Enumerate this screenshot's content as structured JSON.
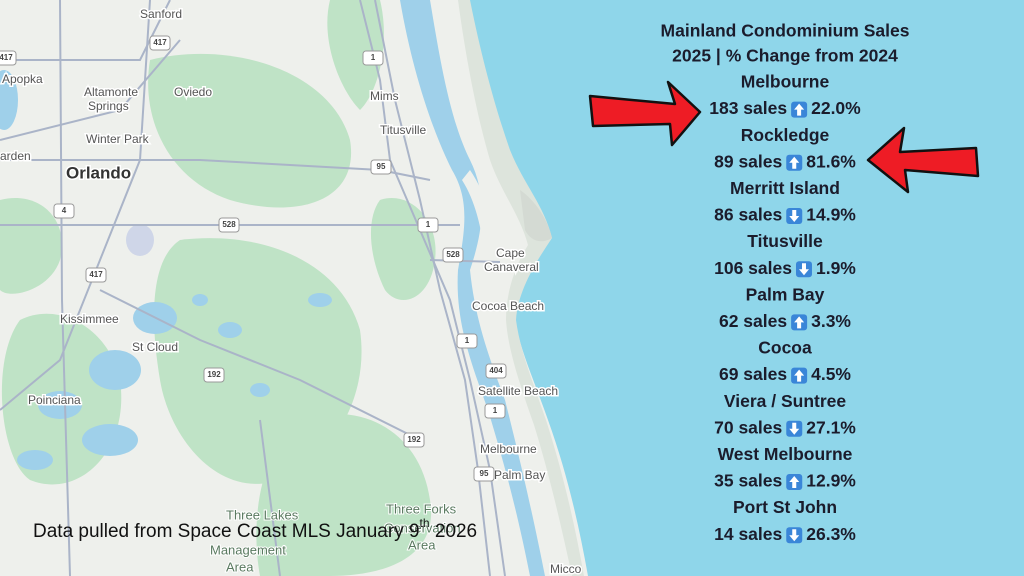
{
  "title_lines": [
    "Mainland Condominium Sales",
    "2025 | % Change from 2024"
  ],
  "cities": [
    {
      "name": "Melbourne",
      "sales": "183 sales",
      "direction": "up",
      "change": "22.0%"
    },
    {
      "name": "Rockledge",
      "sales": "89 sales",
      "direction": "up",
      "change": "81.6%"
    },
    {
      "name": "Merritt Island",
      "sales": "86 sales",
      "direction": "down",
      "change": "14.9%"
    },
    {
      "name": "Titusville",
      "sales": "106 sales",
      "direction": "down",
      "change": "1.9%"
    },
    {
      "name": "Palm Bay",
      "sales": "62 sales",
      "direction": "up",
      "change": "3.3%"
    },
    {
      "name": "Cocoa",
      "sales": "69 sales",
      "direction": "up",
      "change": "4.5%"
    },
    {
      "name": "Viera / Suntree",
      "sales": "70 sales",
      "direction": "down",
      "change": "27.1%"
    },
    {
      "name": "West Melbourne",
      "sales": "35 sales",
      "direction": "up",
      "change": "12.9%"
    },
    {
      "name": "Port St John",
      "sales": "14 sales",
      "direction": "down",
      "change": "26.3%"
    }
  ],
  "footnote": {
    "text": "Data pulled from Space Coast MLS January 9",
    "superscript": "th",
    "tail": " 2026"
  },
  "map_labels": {
    "sanford": "Sanford",
    "apopka": "Apopka",
    "altamonte": "Altamonte",
    "springs": "Springs",
    "oviedo": "Oviedo",
    "winter_park": "Winter Park",
    "garden": "arden",
    "orlando": "Orlando",
    "mims": "Mims",
    "titusville": "Titusville",
    "cape": "Cape",
    "canaveral": "Canaveral",
    "cocoa_beach": "Cocoa Beach",
    "satellite_beach": "Satellite Beach",
    "melbourne": "Melbourne",
    "palm_bay": "Palm Bay",
    "kissimmee": "Kissimmee",
    "st_cloud": "St Cloud",
    "poinciana": "Poinciana",
    "three_forks": "Three Forks",
    "conservation": "Conservation",
    "area": "Area",
    "three_lakes": "Three Lakes",
    "wildlife": "Management",
    "area2": "Area",
    "micco": "Micco"
  },
  "route_shields": [
    "417",
    "417",
    "1",
    "95",
    "4",
    "528",
    "528",
    "1",
    "417",
    "1",
    "404",
    "192",
    "1",
    "192",
    "95"
  ]
}
